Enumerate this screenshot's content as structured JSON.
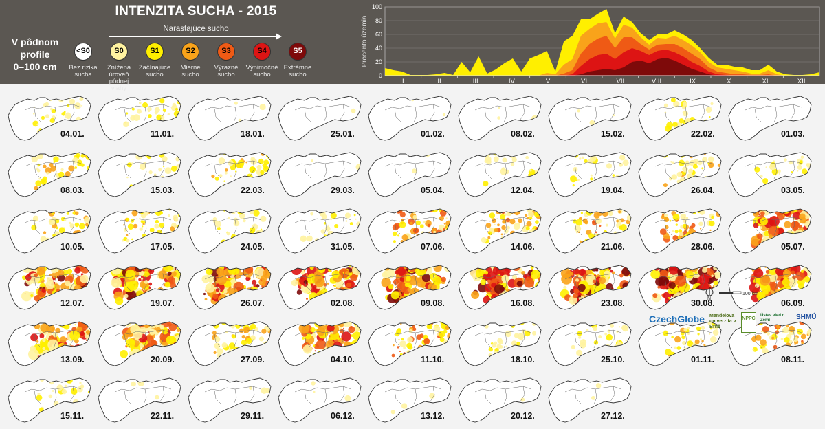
{
  "header": {
    "title": "INTENZITA SUCHA - 2015",
    "profile_lines": [
      "V pôdnom",
      "profile",
      "0–100 cm"
    ],
    "arrow_label": "Narastajúce sucho"
  },
  "legend": [
    {
      "code": "<S0",
      "line1": "Bez rizika",
      "line2": "sucha",
      "color": "#ffffff",
      "text_color": "#000000"
    },
    {
      "code": "S0",
      "line1": "Znížená úroveň",
      "line2": "pôdnej vlahy",
      "color": "#fff3a0",
      "text_color": "#000000"
    },
    {
      "code": "S1",
      "line1": "Začínajúce",
      "line2": "sucho",
      "color": "#ffef00",
      "text_color": "#000000"
    },
    {
      "code": "S2",
      "line1": "Mierne",
      "line2": "sucho",
      "color": "#f9a31a",
      "text_color": "#000000"
    },
    {
      "code": "S3",
      "line1": "Výrazné",
      "line2": "sucho",
      "color": "#ef5a15",
      "text_color": "#000000"
    },
    {
      "code": "S4",
      "line1": "Výnimočné",
      "line2": "sucho",
      "color": "#dd1414",
      "text_color": "#000000"
    },
    {
      "code": "S5",
      "line1": "Extrémne",
      "line2": "sucho",
      "color": "#7e0a0a",
      "text_color": "#ffffff"
    }
  ],
  "chart_data": {
    "type": "area",
    "ylabel": "Procento územia",
    "ylim": [
      0,
      100
    ],
    "yticks": [
      0,
      20,
      40,
      60,
      80,
      100
    ],
    "months": [
      "I",
      "II",
      "III",
      "IV",
      "V",
      "VI",
      "VII",
      "VIII",
      "IX",
      "X",
      "XI",
      "XII"
    ],
    "x_week": [
      1,
      2,
      3,
      4,
      5,
      6,
      7,
      8,
      9,
      10,
      11,
      12,
      13,
      14,
      15,
      16,
      17,
      18,
      19,
      20,
      21,
      22,
      23,
      24,
      25,
      26,
      27,
      28,
      29,
      30,
      31,
      32,
      33,
      34,
      35,
      36,
      37,
      38,
      39,
      40,
      41,
      42,
      43,
      44,
      45,
      46,
      47,
      48,
      49,
      50,
      51,
      52
    ],
    "series": [
      {
        "name": "S1",
        "color": "#ffef00",
        "values": [
          11,
          8,
          6,
          1,
          1,
          1,
          2,
          4,
          1,
          20,
          5,
          28,
          3,
          9,
          18,
          25,
          6,
          25,
          30,
          36,
          6,
          50,
          58,
          82,
          82,
          90,
          97,
          62,
          86,
          78,
          62,
          52,
          60,
          60,
          66,
          60,
          52,
          40,
          26,
          16,
          16,
          13,
          12,
          8,
          8,
          16,
          6,
          2,
          1,
          1,
          2,
          5
        ]
      },
      {
        "name": "S2",
        "color": "#f9a31a",
        "values": [
          0,
          0,
          0,
          0,
          0,
          0,
          0,
          0,
          0,
          0,
          0,
          0,
          0,
          0,
          0,
          0,
          0,
          0,
          0,
          4,
          2,
          16,
          24,
          58,
          68,
          76,
          78,
          54,
          74,
          70,
          56,
          45,
          55,
          54,
          58,
          52,
          44,
          34,
          20,
          12,
          10,
          8,
          6,
          3,
          3,
          8,
          2,
          0,
          0,
          0,
          0,
          0
        ]
      },
      {
        "name": "S3",
        "color": "#ef5a15",
        "values": [
          0,
          0,
          0,
          0,
          0,
          0,
          0,
          0,
          0,
          0,
          0,
          0,
          0,
          0,
          0,
          0,
          0,
          0,
          0,
          0,
          0,
          3,
          8,
          32,
          46,
          54,
          58,
          40,
          56,
          56,
          46,
          38,
          45,
          46,
          46,
          40,
          32,
          24,
          12,
          6,
          4,
          2,
          2,
          1,
          1,
          2,
          0,
          0,
          0,
          0,
          0,
          0
        ]
      },
      {
        "name": "S4",
        "color": "#dd1414",
        "values": [
          0,
          0,
          0,
          0,
          0,
          0,
          0,
          0,
          0,
          0,
          0,
          0,
          0,
          0,
          0,
          0,
          0,
          0,
          0,
          0,
          0,
          0,
          2,
          14,
          24,
          30,
          32,
          24,
          34,
          40,
          36,
          30,
          36,
          38,
          34,
          28,
          20,
          14,
          6,
          2,
          1,
          0,
          0,
          0,
          0,
          0,
          0,
          0,
          0,
          0,
          0,
          0
        ]
      },
      {
        "name": "S5",
        "color": "#7e0a0a",
        "values": [
          0,
          0,
          0,
          0,
          0,
          0,
          0,
          0,
          0,
          0,
          0,
          0,
          0,
          0,
          0,
          0,
          0,
          0,
          0,
          0,
          0,
          0,
          0,
          2,
          6,
          8,
          10,
          8,
          12,
          20,
          22,
          18,
          24,
          26,
          22,
          16,
          10,
          6,
          2,
          0,
          0,
          0,
          0,
          0,
          0,
          0,
          0,
          0,
          0,
          0,
          0,
          0
        ]
      }
    ]
  },
  "maps": [
    {
      "date": "04.01.",
      "level": 1
    },
    {
      "date": "11.01.",
      "level": 1
    },
    {
      "date": "18.01.",
      "level": 0
    },
    {
      "date": "25.01.",
      "level": 0
    },
    {
      "date": "01.02.",
      "level": 0
    },
    {
      "date": "08.02.",
      "level": 0
    },
    {
      "date": "15.02.",
      "level": 0
    },
    {
      "date": "22.02.",
      "level": 1
    },
    {
      "date": "01.03.",
      "level": 0
    },
    {
      "date": "08.03.",
      "level": 2
    },
    {
      "date": "15.03.",
      "level": 1
    },
    {
      "date": "22.03.",
      "level": 2
    },
    {
      "date": "29.03.",
      "level": 0
    },
    {
      "date": "05.04.",
      "level": 0
    },
    {
      "date": "12.04.",
      "level": 1
    },
    {
      "date": "19.04.",
      "level": 1
    },
    {
      "date": "26.04.",
      "level": 2
    },
    {
      "date": "03.05.",
      "level": 1
    },
    {
      "date": "10.05.",
      "level": 2
    },
    {
      "date": "17.05.",
      "level": 2
    },
    {
      "date": "24.05.",
      "level": 1
    },
    {
      "date": "31.05.",
      "level": 1
    },
    {
      "date": "07.06.",
      "level": 3
    },
    {
      "date": "14.06.",
      "level": 3
    },
    {
      "date": "21.06.",
      "level": 3
    },
    {
      "date": "28.06.",
      "level": 3
    },
    {
      "date": "05.07.",
      "level": 4
    },
    {
      "date": "12.07.",
      "level": 5
    },
    {
      "date": "19.07.",
      "level": 5
    },
    {
      "date": "26.07.",
      "level": 5
    },
    {
      "date": "02.08.",
      "level": 5
    },
    {
      "date": "09.08.",
      "level": 5
    },
    {
      "date": "16.08.",
      "level": 5
    },
    {
      "date": "23.08.",
      "level": 6
    },
    {
      "date": "30.08.",
      "level": 6
    },
    {
      "date": "06.09.",
      "level": 4
    },
    {
      "date": "13.09.",
      "level": 4
    },
    {
      "date": "20.09.",
      "level": 4
    },
    {
      "date": "27.09.",
      "level": 2
    },
    {
      "date": "04.10.",
      "level": 4
    },
    {
      "date": "11.10.",
      "level": 3
    },
    {
      "date": "18.10.",
      "level": 1
    },
    {
      "date": "25.10.",
      "level": 1
    },
    {
      "date": "01.11.",
      "level": 2
    },
    {
      "date": "08.11.",
      "level": 3
    },
    {
      "date": "15.11.",
      "level": 1
    },
    {
      "date": "22.11.",
      "level": 0
    },
    {
      "date": "29.11.",
      "level": 0
    },
    {
      "date": "06.12.",
      "level": 0
    },
    {
      "date": "13.12.",
      "level": 0
    },
    {
      "date": "20.12.",
      "level": 0
    },
    {
      "date": "27.12.",
      "level": 0
    }
  ],
  "scale_bar": {
    "label": "100 km",
    "north": "N"
  },
  "logos": [
    {
      "name": "CzechGlobe",
      "color": "#1e6fb8"
    },
    {
      "name": "Mendelova univerzita v Brně",
      "color": "#6a9d1f"
    },
    {
      "name": "NPPC",
      "color": "#5a8d2a"
    },
    {
      "name": "Ústav vied o Zemi",
      "color": "#1b6e2f"
    },
    {
      "name": "SHMÚ",
      "color": "#1f4fa0"
    }
  ]
}
